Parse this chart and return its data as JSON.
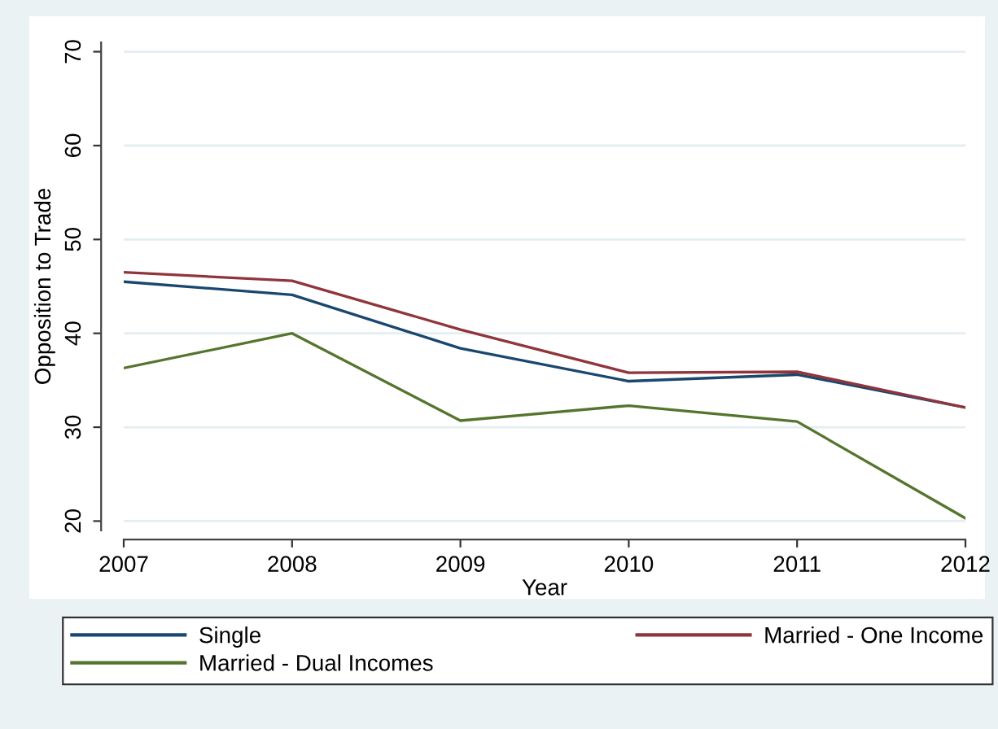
{
  "chart_data": {
    "type": "line",
    "xlabel": "Year",
    "ylabel": "Opposition to Trade",
    "x": [
      2007,
      2008,
      2009,
      2010,
      2011,
      2012
    ],
    "xlim": [
      2007,
      2012
    ],
    "xticks": [
      2007,
      2008,
      2009,
      2010,
      2011,
      2012
    ],
    "ylim": [
      19,
      71
    ],
    "yticks": [
      20,
      30,
      40,
      50,
      60,
      70
    ],
    "grid": "y",
    "legend": "bottom",
    "marker": "none",
    "line_style": "solid",
    "series": [
      {
        "name": "Single",
        "color": "#1a476f",
        "values": [
          45.5,
          44.1,
          38.4,
          34.9,
          35.6,
          32.1
        ]
      },
      {
        "name": "Married - One Income",
        "color": "#90353b",
        "values": [
          46.5,
          45.6,
          40.4,
          35.8,
          35.9,
          32.1
        ]
      },
      {
        "name": "Married - Dual Incomes",
        "color": "#55752f",
        "values": [
          36.3,
          40.0,
          30.7,
          32.3,
          30.6,
          20.3
        ]
      }
    ]
  }
}
